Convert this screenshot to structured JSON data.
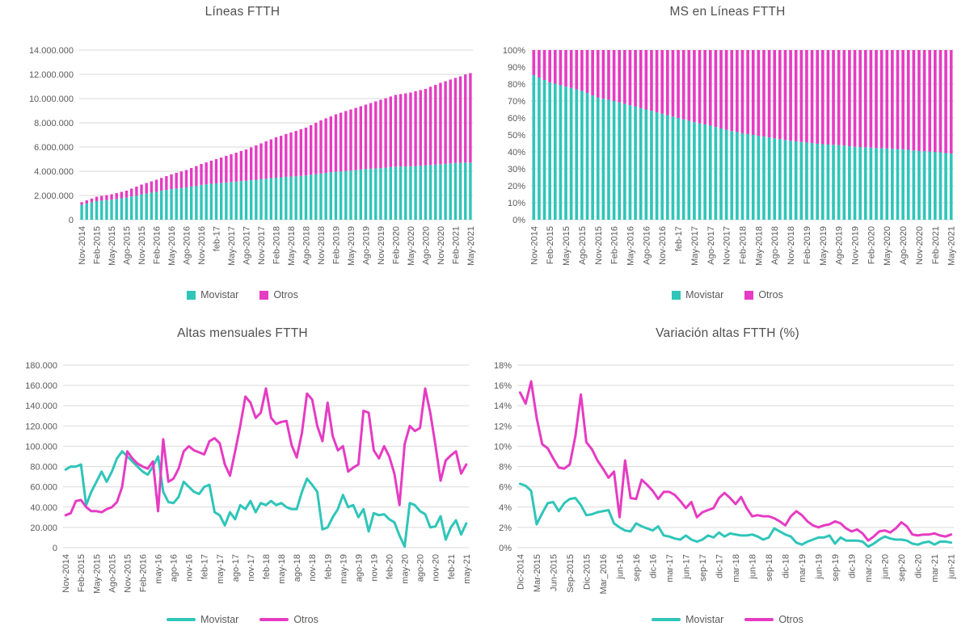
{
  "colors": {
    "movistar": "#2FC5B9",
    "otros": "#E63BC3",
    "grid": "#D9D9D9",
    "text": "#595959",
    "title": "#4F4F4F",
    "background": "#FFFFFF"
  },
  "chart_data": [
    {
      "type": "stacked-bar",
      "title": "Líneas FTTH",
      "ylabel": "",
      "xlabel": "",
      "y_ticks": [
        "0",
        "2.000.000",
        "4.000.000",
        "6.000.000",
        "8.000.000",
        "10.000.000",
        "12.000.000",
        "14.000.000"
      ],
      "y_max": 14000000,
      "label_every": 3,
      "legend_position": "bottom",
      "x_labels": [
        "Nov-2014",
        "Feb-2015",
        "May-2015",
        "Ago-2015",
        "Nov-2015",
        "Feb-2016",
        "May-2016",
        "Ago-2016",
        "Nov-2016",
        "feb-17",
        "May-2017",
        "Ago-2017",
        "Nov-2017",
        "Feb-2018",
        "May-2018",
        "Ago-2018",
        "Nov-2018",
        "Feb-2019",
        "May-2019",
        "Ago-2019",
        "Nov-2019",
        "Feb-2020",
        "May-2020",
        "Ago-2020",
        "Nov-2020",
        "Feb-2021",
        "May-2021"
      ],
      "series": [
        {
          "name": "Movistar",
          "color": "movistar",
          "values": [
            1240000,
            1340000,
            1440000,
            1540000,
            1580000,
            1610000,
            1650000,
            1710000,
            1770000,
            1820000,
            1920000,
            2000000,
            2090000,
            2160000,
            2240000,
            2310000,
            2390000,
            2460000,
            2530000,
            2580000,
            2620000,
            2670000,
            2740000,
            2800000,
            2880000,
            2920000,
            2960000,
            3000000,
            3040000,
            3070000,
            3110000,
            3140000,
            3190000,
            3220000,
            3270000,
            3300000,
            3340000,
            3380000,
            3430000,
            3470000,
            3500000,
            3540000,
            3560000,
            3590000,
            3620000,
            3650000,
            3710000,
            3760000,
            3810000,
            3870000,
            3910000,
            3960000,
            3990000,
            4020000,
            4050000,
            4090000,
            4140000,
            4180000,
            4210000,
            4230000,
            4260000,
            4290000,
            4340000,
            4380000,
            4390000,
            4400000,
            4410000,
            4430000,
            4460000,
            4480000,
            4520000,
            4540000,
            4580000,
            4610000,
            4650000,
            4680000,
            4700000,
            4720000,
            4720000
          ]
        },
        {
          "name": "Otros",
          "color": "otros",
          "values": [
            210000,
            260000,
            310000,
            360000,
            390000,
            420000,
            450000,
            490000,
            530000,
            580000,
            650000,
            730000,
            810000,
            870000,
            930000,
            990000,
            1060000,
            1140000,
            1220000,
            1290000,
            1360000,
            1430000,
            1530000,
            1630000,
            1720000,
            1810000,
            1910000,
            2000000,
            2090000,
            2200000,
            2290000,
            2390000,
            2480000,
            2580000,
            2700000,
            2830000,
            2960000,
            3090000,
            3200000,
            3330000,
            3430000,
            3530000,
            3640000,
            3740000,
            3850000,
            3950000,
            4090000,
            4240000,
            4390000,
            4500000,
            4620000,
            4740000,
            4840000,
            4950000,
            5050000,
            5140000,
            5230000,
            5320000,
            5420000,
            5540000,
            5640000,
            5740000,
            5830000,
            5920000,
            5980000,
            6030000,
            6090000,
            6170000,
            6240000,
            6320000,
            6450000,
            6590000,
            6720000,
            6820000,
            6920000,
            7020000,
            7130000,
            7270000,
            7380000
          ]
        }
      ]
    },
    {
      "type": "stacked-bar",
      "title": "MS en Líneas FTTH",
      "ylabel": "",
      "xlabel": "",
      "y_ticks": [
        "0%",
        "10%",
        "20%",
        "30%",
        "40%",
        "50%",
        "60%",
        "70%",
        "80%",
        "90%",
        "100%"
      ],
      "y_max": 100,
      "label_every": 3,
      "legend_position": "bottom",
      "x_labels": [
        "Nov-2014",
        "Feb-2015",
        "May-2015",
        "Ago-2015",
        "Nov-2015",
        "Feb-2016",
        "May-2016",
        "Ago-2016",
        "Nov-2016",
        "feb-17",
        "May-2017",
        "Ago-2017",
        "Nov-2017",
        "Feb-2018",
        "May-2018",
        "Ago-2018",
        "Nov-2018",
        "Feb-2019",
        "May-2019",
        "Ago-2019",
        "Nov-2019",
        "Feb-2020",
        "May-2020",
        "Ago-2020",
        "Nov-2020",
        "Feb-2021",
        "May-2021"
      ],
      "series": [
        {
          "name": "Movistar",
          "color": "movistar",
          "values": [
            85.2,
            83.8,
            82.4,
            81,
            80.2,
            79.3,
            78.5,
            77.7,
            76.8,
            76,
            74.7,
            73.3,
            72,
            71.3,
            70.7,
            70,
            69.2,
            68.3,
            67.5,
            66.7,
            65.8,
            65,
            64.2,
            63.3,
            62.5,
            61.7,
            60.8,
            60,
            59.2,
            58.3,
            57.5,
            56.8,
            56.2,
            55.5,
            54.7,
            53.8,
            53,
            52.3,
            51.7,
            51,
            50.5,
            50,
            49.5,
            49,
            48.5,
            48,
            47.5,
            47,
            46.5,
            46.2,
            45.8,
            45.5,
            45.2,
            44.8,
            44.5,
            44.3,
            44.2,
            44,
            43.7,
            43.3,
            43,
            42.8,
            42.7,
            42.5,
            42.3,
            42.2,
            42,
            41.8,
            41.7,
            41.5,
            41.2,
            40.8,
            40.5,
            40.3,
            40.2,
            40,
            39.7,
            39.3,
            39
          ]
        },
        {
          "name": "Otros",
          "color": "otros",
          "values": [
            14.8,
            16.2,
            17.6,
            19,
            19.8,
            20.7,
            21.5,
            22.3,
            23.2,
            24,
            25.3,
            26.7,
            28,
            28.7,
            29.3,
            30,
            30.8,
            31.7,
            32.5,
            33.3,
            34.2,
            35,
            35.8,
            36.7,
            37.5,
            38.3,
            39.2,
            40,
            40.8,
            41.7,
            42.5,
            43.2,
            43.8,
            44.5,
            45.3,
            46.2,
            47,
            47.7,
            48.3,
            49,
            49.5,
            50,
            50.5,
            51,
            51.5,
            52,
            52.5,
            53,
            53.5,
            53.8,
            54.2,
            54.5,
            54.8,
            55.2,
            55.5,
            55.7,
            55.8,
            56,
            56.3,
            56.7,
            57,
            57.2,
            57.3,
            57.5,
            57.7,
            57.8,
            58,
            58.2,
            58.3,
            58.5,
            58.8,
            59.2,
            59.5,
            59.7,
            59.8,
            60,
            60.3,
            60.7,
            61
          ]
        }
      ]
    },
    {
      "type": "line",
      "title": "Altas mensuales FTTH",
      "ylabel": "",
      "xlabel": "",
      "y_ticks": [
        "0",
        "20.000",
        "40.000",
        "60.000",
        "80.000",
        "100.000",
        "120.000",
        "140.000",
        "160.000",
        "180.000"
      ],
      "y_max": 180000,
      "label_every": 3,
      "legend_position": "bottom",
      "x_labels": [
        "Nov-2014",
        "Feb-2015",
        "May-2015",
        "Ago-2015",
        "Nov-2015",
        "Feb-2016",
        "may-16",
        "ago-16",
        "nov-16",
        "feb-17",
        "may-17",
        "ago-17",
        "nov-17",
        "feb-18",
        "may-18",
        "ago-18",
        "nov-18",
        "feb-19",
        "may-19",
        "ago-19",
        "nov-19",
        "feb-20",
        "may-20",
        "ago-20",
        "nov-20",
        "feb-21",
        "may-21"
      ],
      "series": [
        {
          "name": "Movistar",
          "color": "movistar",
          "values": [
            77000,
            80000,
            80000,
            82000,
            42000,
            55000,
            65000,
            75000,
            65000,
            75000,
            88000,
            95000,
            90000,
            85000,
            80000,
            75000,
            72000,
            80000,
            90000,
            55000,
            45000,
            44000,
            50000,
            65000,
            60000,
            55000,
            53000,
            60000,
            62000,
            35000,
            32000,
            22000,
            35000,
            28000,
            42000,
            38000,
            46000,
            35000,
            44000,
            42000,
            46000,
            42000,
            44000,
            40000,
            38000,
            38000,
            55000,
            68000,
            62000,
            55000,
            18000,
            20000,
            30000,
            38000,
            52000,
            40000,
            42000,
            30000,
            38000,
            16000,
            34000,
            32000,
            33000,
            28000,
            25000,
            12000,
            1000,
            44000,
            42000,
            36000,
            33000,
            20000,
            21000,
            31000,
            8000,
            20000,
            27000,
            13000,
            24000
          ]
        },
        {
          "name": "Otros",
          "color": "otros",
          "values": [
            32000,
            34000,
            46000,
            47000,
            40000,
            36000,
            36000,
            35000,
            38000,
            40000,
            45000,
            60000,
            95000,
            88000,
            83000,
            80000,
            78000,
            85000,
            36000,
            107000,
            65000,
            68000,
            78000,
            95000,
            100000,
            96000,
            94000,
            92000,
            105000,
            108000,
            103000,
            82000,
            71000,
            95000,
            120000,
            149000,
            143000,
            128000,
            133000,
            157000,
            128000,
            122000,
            124000,
            125000,
            101000,
            89000,
            113000,
            152000,
            146000,
            120000,
            105000,
            143000,
            110000,
            96000,
            100000,
            75000,
            79000,
            82000,
            135000,
            133000,
            96000,
            88000,
            100000,
            90000,
            73000,
            42000,
            102000,
            120000,
            115000,
            118000,
            157000,
            133000,
            101000,
            66000,
            86000,
            91000,
            95000,
            73000,
            82000
          ]
        }
      ]
    },
    {
      "type": "line",
      "title": "Variación altas FTTH (%)",
      "ylabel": "",
      "xlabel": "",
      "y_ticks": [
        "0%",
        "2%",
        "4%",
        "6%",
        "8%",
        "10%",
        "12%",
        "14%",
        "16%",
        "18%"
      ],
      "y_max": 18,
      "label_every": 3,
      "legend_position": "bottom",
      "x_labels": [
        "Dic-2014",
        "Mar-2015",
        "Jun-2015",
        "Sep-2015",
        "Dic-2015",
        "Mar_2016",
        "jun-16",
        "sep-16",
        "dic-16",
        "mar-17",
        "jun-17",
        "sep-17",
        "dic-17",
        "mar-18",
        "jun-18",
        "sep-18",
        "dic-18",
        "mar-19",
        "jun-19",
        "sep-19",
        "dic-19",
        "mar-20",
        "jun-20",
        "sep-20",
        "dic-20",
        "mar-21",
        "jun-21"
      ],
      "series": [
        {
          "name": "Movistar",
          "color": "movistar",
          "values": [
            6.3,
            6.1,
            5.6,
            2.3,
            3.4,
            4.4,
            4.5,
            3.6,
            4.4,
            4.8,
            4.9,
            4.2,
            3.2,
            3.3,
            3.5,
            3.6,
            3.7,
            2.4,
            2.0,
            1.7,
            1.6,
            2.4,
            2.1,
            1.9,
            1.7,
            2.1,
            1.2,
            1.1,
            0.9,
            0.8,
            1.2,
            0.8,
            0.6,
            0.8,
            1.2,
            1.0,
            1.5,
            1.1,
            1.4,
            1.3,
            1.2,
            1.2,
            1.3,
            1.1,
            0.8,
            1.0,
            1.9,
            1.6,
            1.3,
            1.1,
            0.5,
            0.3,
            0.6,
            0.8,
            1.0,
            1.0,
            1.2,
            0.4,
            1.0,
            0.7,
            0.7,
            0.7,
            0.6,
            0.1,
            0.4,
            0.8,
            1.1,
            0.9,
            0.8,
            0.8,
            0.7,
            0.4,
            0.3,
            0.5,
            0.6,
            0.3,
            0.6,
            0.6,
            0.5
          ]
        },
        {
          "name": "Otros",
          "color": "otros",
          "values": [
            15.3,
            14.2,
            16.4,
            12.8,
            10.2,
            9.8,
            8.8,
            7.9,
            7.8,
            8.2,
            11.0,
            15.1,
            10.4,
            9.7,
            8.6,
            7.8,
            6.9,
            7.5,
            3.0,
            8.6,
            4.9,
            4.8,
            6.7,
            6.2,
            5.6,
            4.8,
            5.5,
            5.5,
            5.2,
            4.6,
            3.9,
            4.5,
            3.0,
            3.5,
            3.7,
            3.9,
            4.9,
            5.4,
            4.9,
            4.3,
            5.0,
            3.9,
            3.1,
            3.2,
            3.1,
            3.1,
            2.9,
            2.6,
            2.2,
            3.1,
            3.6,
            3.2,
            2.6,
            2.2,
            2.0,
            2.2,
            2.3,
            2.6,
            2.4,
            1.9,
            1.6,
            1.8,
            1.4,
            0.7,
            1.1,
            1.6,
            1.7,
            1.5,
            1.9,
            2.5,
            2.1,
            1.3,
            1.2,
            1.3,
            1.3,
            1.4,
            1.2,
            1.1,
            1.3
          ]
        }
      ]
    }
  ]
}
